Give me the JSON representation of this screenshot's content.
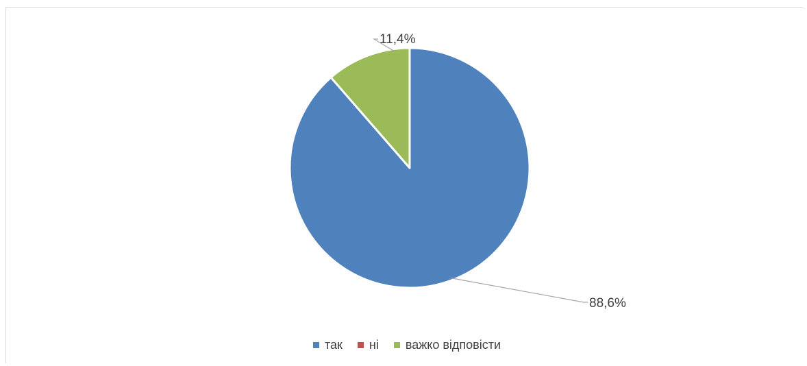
{
  "chart_data": {
    "type": "pie",
    "categories": [
      "так",
      "ні",
      "важко відповісти"
    ],
    "values": [
      88.6,
      0,
      11.4
    ],
    "data_labels": [
      "88,6%",
      "",
      "11,4%"
    ],
    "colors": [
      "#4f81bd",
      "#c0504d",
      "#9bbb59"
    ],
    "legend_position": "bottom",
    "start_angle": "top, clockwise"
  },
  "legend": {
    "items": [
      {
        "label": "так",
        "color": "#4f81bd"
      },
      {
        "label": "ні",
        "color": "#c0504d"
      },
      {
        "label": "важко відповісти",
        "color": "#9bbb59"
      }
    ]
  }
}
